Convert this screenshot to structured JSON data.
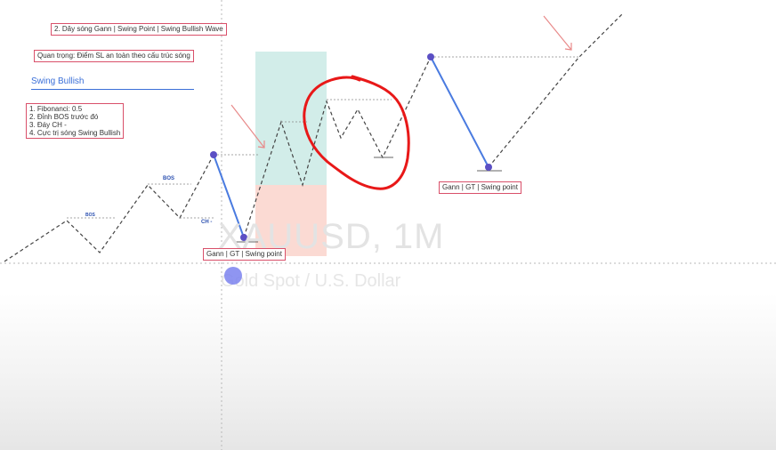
{
  "watermark": {
    "symbol": "XAUUSD, 1M",
    "description": "Gold Spot / U.S. Dollar"
  },
  "notes": {
    "title_box": "2. Dây sóng Gann | Swing Point | Swing Bullish Wave",
    "important_box": "Quan trọng: Điểm SL an toàn theo cấu trúc sóng",
    "heading": "Swing Bullish",
    "list": [
      "1. Fibonanci: 0.5",
      "2. Đỉnh BOS trước đó",
      "3. Đáy CH -",
      "4. Cực trị sóng Swing Bullish"
    ],
    "gann_label_left": "Gann | GT | Swing point",
    "gann_label_right": "Gann | GT | Swing point"
  },
  "chart_labels": {
    "bos_small": "BOS",
    "bos": "BOS",
    "ch": "CH -"
  },
  "colors": {
    "swing_line": "#4a7be0",
    "swing_point": "#5b4fc4",
    "annotation_red": "#e81818",
    "arrow": "#e88a8a",
    "box_border": "#d9506a",
    "target_zone": "#d2ede9",
    "stop_zone": "#fbdad3"
  }
}
